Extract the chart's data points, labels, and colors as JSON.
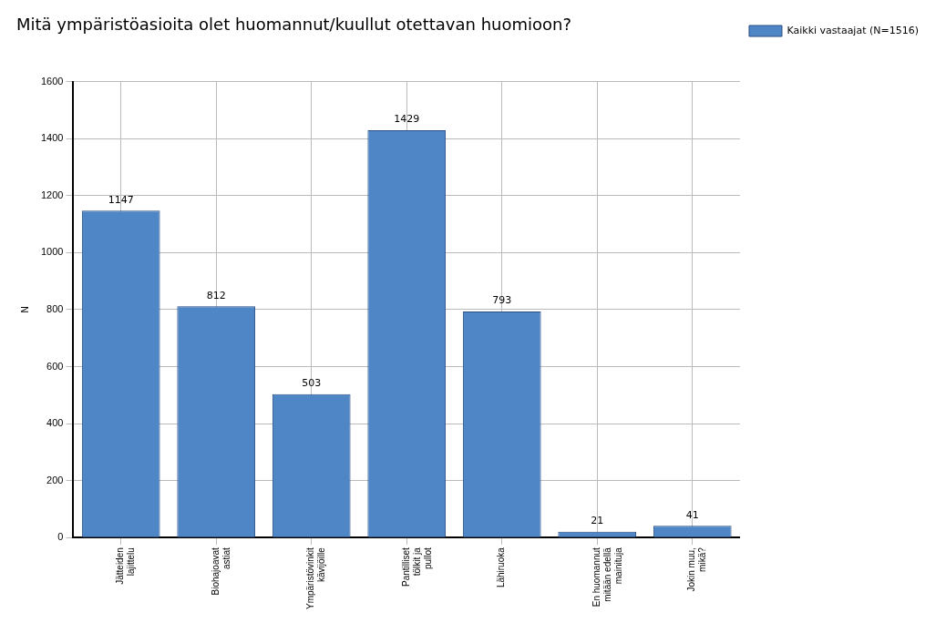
{
  "chart_data": {
    "type": "bar",
    "title": "Mitä ympäristöasioita olet huomannut/kuullut otettavan huomioon?",
    "ylabel": "N",
    "categories": [
      "Jätteiden lajittelu",
      "Biohajoavat astiat",
      "Ympäristövinkit kävijöille",
      "Pantilliset tölkit ja pullot",
      "Lähiruoka",
      "En huomannut mitään edellä mainituja",
      "Jokin muu, mikä?"
    ],
    "series": [
      {
        "name": "Kaikki vastaajat (N=1516)",
        "color": "#4f86c6",
        "values": [
          1147,
          812,
          503,
          1429,
          793,
          21,
          41
        ]
      }
    ],
    "ylim": [
      0,
      1600
    ],
    "yticks": [
      0,
      200,
      400,
      600,
      800,
      1000,
      1200,
      1400,
      1600
    ],
    "grid": true,
    "legend": "top right",
    "data_labels": true
  }
}
